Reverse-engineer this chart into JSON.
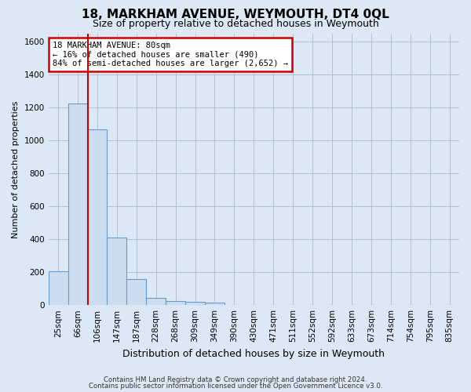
{
  "title": "18, MARKHAM AVENUE, WEYMOUTH, DT4 0QL",
  "subtitle": "Size of property relative to detached houses in Weymouth",
  "xlabel": "Distribution of detached houses by size in Weymouth",
  "ylabel": "Number of detached properties",
  "bar_labels": [
    "25sqm",
    "66sqm",
    "106sqm",
    "147sqm",
    "187sqm",
    "228sqm",
    "268sqm",
    "309sqm",
    "349sqm",
    "390sqm",
    "430sqm",
    "471sqm",
    "511sqm",
    "552sqm",
    "592sqm",
    "633sqm",
    "673sqm",
    "714sqm",
    "754sqm",
    "795sqm",
    "835sqm"
  ],
  "bar_values": [
    205,
    1225,
    1065,
    410,
    160,
    45,
    25,
    20,
    15,
    0,
    0,
    0,
    0,
    0,
    0,
    0,
    0,
    0,
    0,
    0,
    0
  ],
  "bar_color": "#ccddf0",
  "bar_edge_color": "#6699cc",
  "vline_color": "#cc0000",
  "vline_x": 1.5,
  "annotation_title": "18 MARKHAM AVENUE: 80sqm",
  "annotation_line1": "← 16% of detached houses are smaller (490)",
  "annotation_line2": "84% of semi-detached houses are larger (2,652) →",
  "annotation_box_facecolor": "#ffffff",
  "annotation_box_edgecolor": "#cc0000",
  "ylim": [
    0,
    1650
  ],
  "yticks": [
    0,
    200,
    400,
    600,
    800,
    1000,
    1200,
    1400,
    1600
  ],
  "grid_color": "#aabbcc",
  "bg_color": "#dce8f5",
  "plot_bg_color": "#dce8f5",
  "title_fontsize": 11,
  "subtitle_fontsize": 9,
  "ylabel_fontsize": 8,
  "xlabel_fontsize": 9,
  "tick_fontsize": 7.5,
  "footer1": "Contains HM Land Registry data © Crown copyright and database right 2024.",
  "footer2": "Contains public sector information licensed under the Open Government Licence v3.0."
}
